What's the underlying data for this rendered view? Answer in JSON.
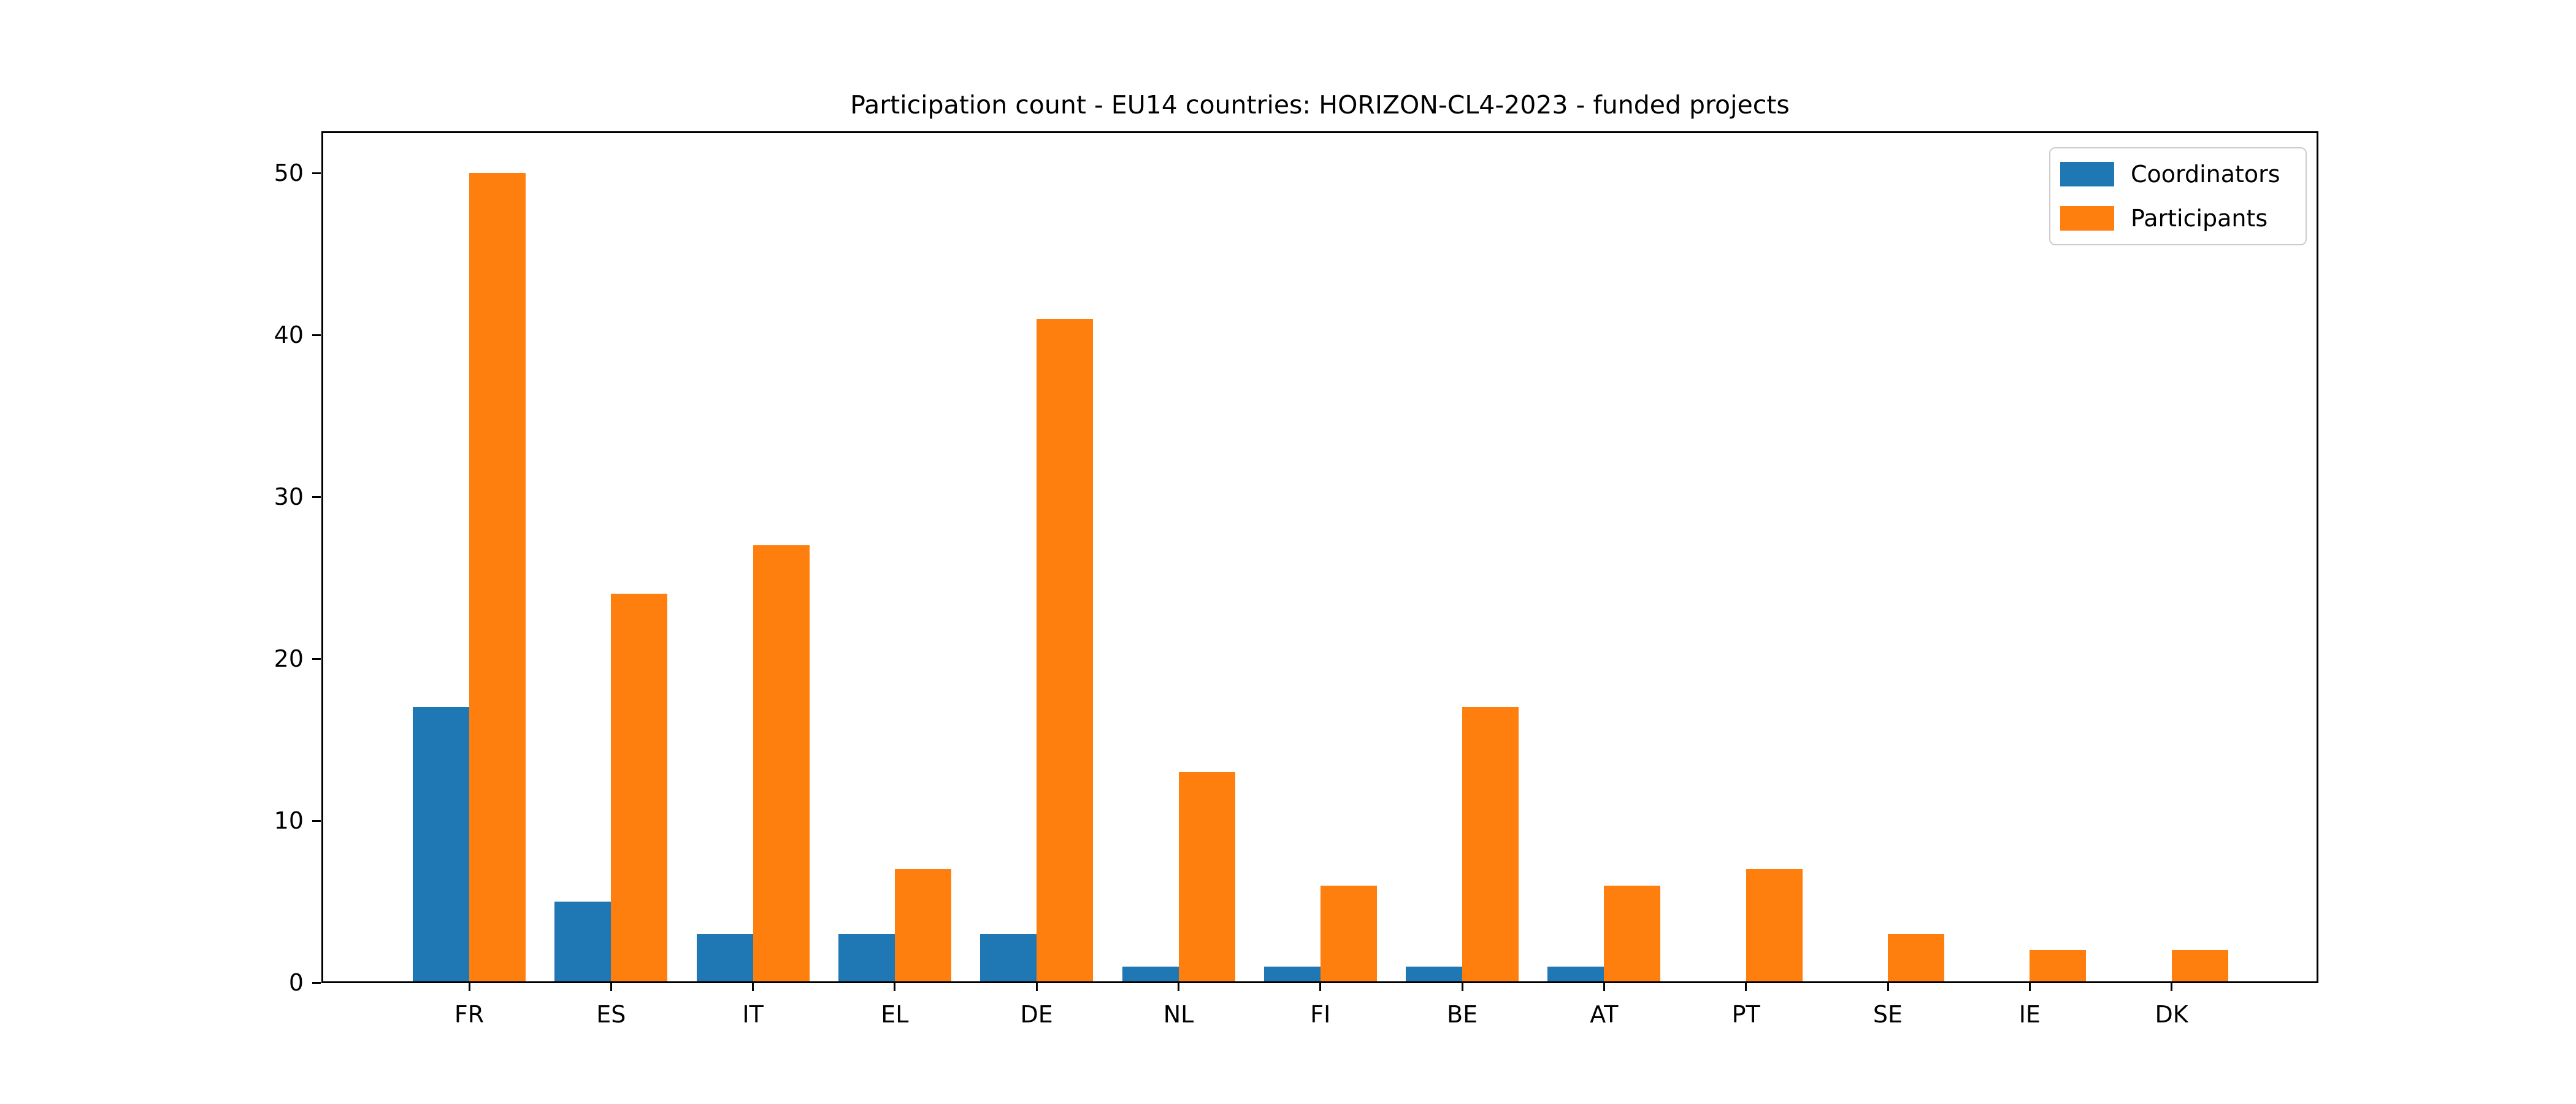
{
  "chart_data": {
    "type": "bar",
    "title": "Participation count - EU14 countries: HORIZON-CL4-2023 - funded projects",
    "categories": [
      "FR",
      "ES",
      "IT",
      "EL",
      "DE",
      "NL",
      "FI",
      "BE",
      "AT",
      "PT",
      "SE",
      "IE",
      "DK"
    ],
    "series": [
      {
        "name": "Coordinators",
        "color": "#1f77b4",
        "values": [
          17,
          5,
          3,
          3,
          3,
          1,
          1,
          1,
          1,
          0,
          0,
          0,
          0
        ]
      },
      {
        "name": "Participants",
        "color": "#ff7f0e",
        "values": [
          50,
          24,
          27,
          7,
          41,
          13,
          6,
          17,
          6,
          7,
          3,
          2,
          2
        ]
      }
    ],
    "xlabel": "",
    "ylabel": "",
    "yticks": [
      0,
      10,
      20,
      30,
      40,
      50
    ],
    "ylim": [
      0,
      52.5
    ],
    "grid": false,
    "legend_position": "upper right",
    "background_color": "#ffffff",
    "spine_color": "#000000"
  }
}
